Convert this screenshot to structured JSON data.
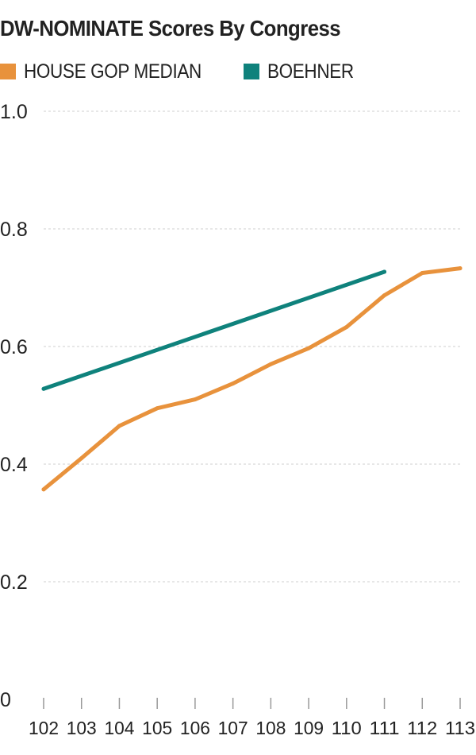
{
  "chart_data": {
    "type": "line",
    "title": "DW-NOMINATE Scores By Congress",
    "xlabel": "",
    "ylabel": "",
    "x": [
      102,
      103,
      104,
      105,
      106,
      107,
      108,
      109,
      110,
      111,
      112,
      113
    ],
    "x_tick_labels": [
      "102",
      "103",
      "104",
      "105",
      "106",
      "107",
      "108",
      "109",
      "110",
      "111",
      "112",
      "113"
    ],
    "y_tick_labels": [
      "0",
      "0.2",
      "0.4",
      "0.6",
      "0.8",
      "1.0"
    ],
    "y_ticks": [
      0,
      0.2,
      0.4,
      0.6,
      0.8,
      1.0
    ],
    "ylim": [
      0,
      1.0
    ],
    "xlim": [
      102,
      113
    ],
    "grid": true,
    "legend_position": "top-left",
    "series": [
      {
        "name": "HOUSE GOP MEDIAN",
        "color": "#e8923c",
        "values": [
          0.357,
          0.41,
          0.465,
          0.495,
          0.51,
          0.537,
          0.57,
          0.597,
          0.633,
          0.687,
          0.725,
          0.733
        ]
      },
      {
        "name": "BOEHNER",
        "color": "#0f827c",
        "values": [
          0.528,
          null,
          null,
          null,
          null,
          null,
          null,
          null,
          null,
          0.727,
          null,
          null
        ]
      }
    ]
  }
}
